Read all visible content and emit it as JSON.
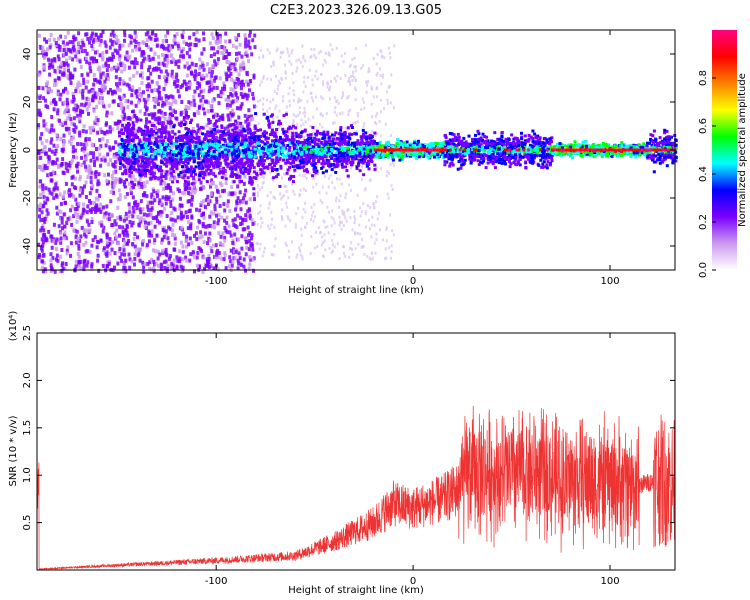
{
  "title": "C2E3.2023.326.09.13.G05",
  "chart_data": [
    {
      "type": "heatmap",
      "xlabel": "Height of straight line (km)",
      "ylabel": "Frequency (Hz)",
      "xlim": [
        -191,
        133
      ],
      "ylim": [
        -50,
        50
      ],
      "x_ticks": [
        -100,
        0,
        100
      ],
      "y_ticks": [
        40,
        20,
        0,
        -20,
        -40
      ],
      "colorbar": {
        "label": "Normalized spectral amplitude",
        "range": [
          0,
          1
        ],
        "ticks": [
          0.0,
          0.2,
          0.4,
          0.6,
          0.8
        ],
        "colors": [
          "#ffffff",
          "#cc99ee",
          "#7a00ff",
          "#0000ff",
          "#00ffff",
          "#00ff00",
          "#ffff00",
          "#ff8000",
          "#ff0000",
          "#ff0080"
        ]
      },
      "grid": false
    },
    {
      "type": "line",
      "xlabel": "Height of straight line (km)",
      "ylabel": "SNR (10 * v/v)",
      "y_scale_label": "(x10⁴)",
      "xlim": [
        -191,
        133
      ],
      "ylim": [
        0,
        2.5
      ],
      "x_ticks": [
        -100,
        0,
        100
      ],
      "y_ticks": [
        0.5,
        1.0,
        1.5,
        2.0,
        2.5
      ],
      "line_color": "#ee3333",
      "envelope": [
        {
          "x": -190,
          "y": 0.01
        },
        {
          "x": -150,
          "y": 0.05
        },
        {
          "x": -100,
          "y": 0.1
        },
        {
          "x": -60,
          "y": 0.15
        },
        {
          "x": -40,
          "y": 0.3
        },
        {
          "x": -20,
          "y": 0.5
        },
        {
          "x": -10,
          "y": 0.7
        },
        {
          "x": 0,
          "y": 0.65
        },
        {
          "x": 15,
          "y": 0.75
        },
        {
          "x": 23,
          "y": 0.85
        },
        {
          "x": 30,
          "y": 1.05
        },
        {
          "x": 45,
          "y": 1.0
        },
        {
          "x": 60,
          "y": 1.05
        },
        {
          "x": 75,
          "y": 0.95
        },
        {
          "x": 90,
          "y": 0.95
        },
        {
          "x": 110,
          "y": 0.9
        },
        {
          "x": 115,
          "y": 0.9
        },
        {
          "x": 125,
          "y": 0.95
        },
        {
          "x": 133,
          "y": 0.9
        }
      ]
    }
  ]
}
